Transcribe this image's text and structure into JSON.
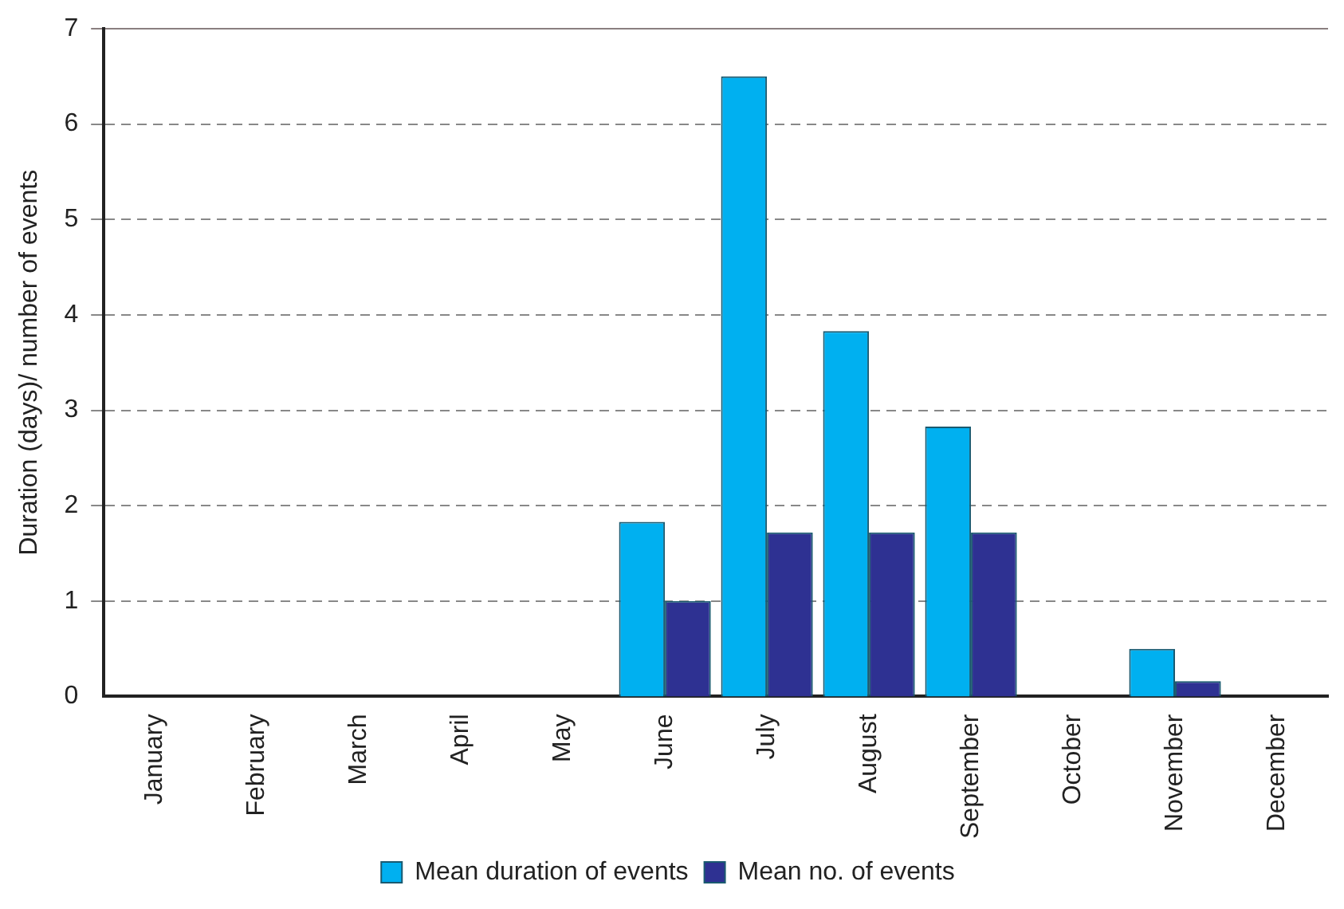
{
  "chart_data": {
    "type": "bar",
    "ylabel": "Duration (days)/ number of events",
    "categories": [
      "January",
      "February",
      "March",
      "April",
      "May",
      "June",
      "July",
      "August",
      "September",
      "October",
      "November",
      "December"
    ],
    "series": [
      {
        "name": "Mean duration of events",
        "color": "#00b0f0",
        "values": [
          0,
          0,
          0,
          0,
          0,
          1.83,
          6.5,
          3.83,
          2.83,
          0,
          0.5,
          0
        ]
      },
      {
        "name": "Mean no. of events",
        "color": "#2e3192",
        "values": [
          0,
          0,
          0,
          0,
          0,
          1.0,
          1.72,
          1.72,
          1.72,
          0,
          0.16,
          0
        ]
      }
    ],
    "ylim": [
      0,
      7
    ],
    "yticks": [
      0,
      1,
      2,
      3,
      4,
      5,
      6,
      7
    ],
    "grid": "y",
    "legend": "bottom"
  }
}
